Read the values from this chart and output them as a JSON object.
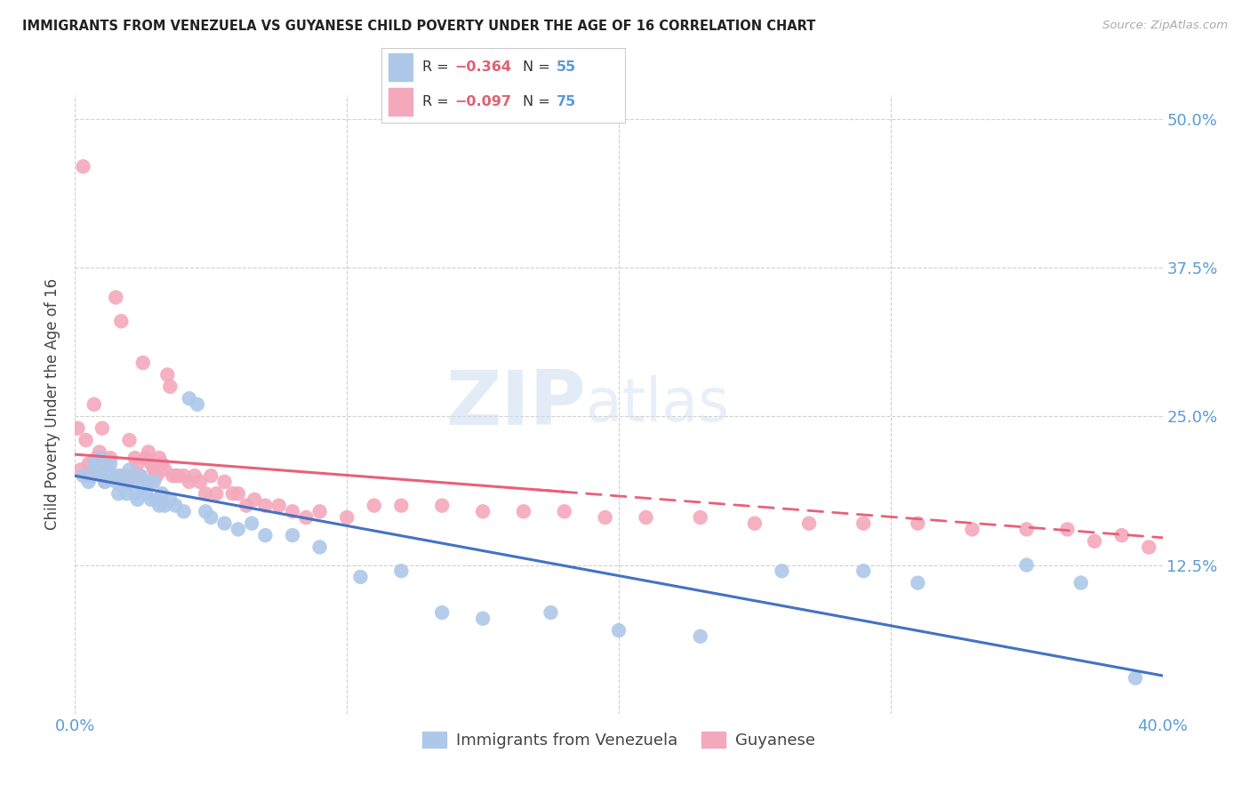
{
  "title": "IMMIGRANTS FROM VENEZUELA VS GUYANESE CHILD POVERTY UNDER THE AGE OF 16 CORRELATION CHART",
  "source": "Source: ZipAtlas.com",
  "ylabel": "Child Poverty Under the Age of 16",
  "xlim": [
    0.0,
    0.4
  ],
  "ylim": [
    0.0,
    0.52
  ],
  "blue_color": "#adc8e8",
  "pink_color": "#f4a8bb",
  "line_blue": "#4472c4",
  "line_pink": "#e8607a",
  "watermark_zip": "ZIP",
  "watermark_atlas": "atlas",
  "blue_scatter_x": [
    0.003,
    0.005,
    0.007,
    0.008,
    0.009,
    0.01,
    0.011,
    0.012,
    0.013,
    0.014,
    0.015,
    0.016,
    0.017,
    0.018,
    0.019,
    0.02,
    0.021,
    0.022,
    0.023,
    0.024,
    0.025,
    0.026,
    0.027,
    0.028,
    0.029,
    0.03,
    0.031,
    0.032,
    0.033,
    0.035,
    0.037,
    0.04,
    0.042,
    0.045,
    0.048,
    0.05,
    0.055,
    0.06,
    0.065,
    0.07,
    0.08,
    0.09,
    0.105,
    0.12,
    0.135,
    0.15,
    0.175,
    0.2,
    0.23,
    0.26,
    0.29,
    0.31,
    0.35,
    0.37,
    0.39
  ],
  "blue_scatter_y": [
    0.2,
    0.195,
    0.21,
    0.205,
    0.215,
    0.2,
    0.195,
    0.205,
    0.21,
    0.2,
    0.195,
    0.185,
    0.2,
    0.19,
    0.185,
    0.205,
    0.195,
    0.185,
    0.18,
    0.2,
    0.19,
    0.185,
    0.195,
    0.18,
    0.195,
    0.18,
    0.175,
    0.185,
    0.175,
    0.18,
    0.175,
    0.17,
    0.265,
    0.26,
    0.17,
    0.165,
    0.16,
    0.155,
    0.16,
    0.15,
    0.15,
    0.14,
    0.115,
    0.12,
    0.085,
    0.08,
    0.085,
    0.07,
    0.065,
    0.12,
    0.12,
    0.11,
    0.125,
    0.11,
    0.03
  ],
  "pink_scatter_x": [
    0.001,
    0.002,
    0.003,
    0.004,
    0.005,
    0.006,
    0.007,
    0.008,
    0.009,
    0.01,
    0.011,
    0.012,
    0.013,
    0.014,
    0.015,
    0.016,
    0.017,
    0.018,
    0.019,
    0.02,
    0.021,
    0.022,
    0.023,
    0.024,
    0.025,
    0.026,
    0.027,
    0.028,
    0.029,
    0.03,
    0.031,
    0.032,
    0.033,
    0.034,
    0.035,
    0.036,
    0.037,
    0.038,
    0.04,
    0.042,
    0.044,
    0.046,
    0.048,
    0.05,
    0.052,
    0.055,
    0.058,
    0.06,
    0.063,
    0.066,
    0.07,
    0.075,
    0.08,
    0.085,
    0.09,
    0.1,
    0.11,
    0.12,
    0.135,
    0.15,
    0.165,
    0.18,
    0.195,
    0.21,
    0.23,
    0.25,
    0.27,
    0.29,
    0.31,
    0.33,
    0.35,
    0.365,
    0.375,
    0.385,
    0.395
  ],
  "pink_scatter_y": [
    0.24,
    0.205,
    0.46,
    0.23,
    0.21,
    0.2,
    0.26,
    0.215,
    0.22,
    0.24,
    0.195,
    0.205,
    0.215,
    0.2,
    0.35,
    0.2,
    0.33,
    0.2,
    0.195,
    0.23,
    0.2,
    0.215,
    0.21,
    0.2,
    0.295,
    0.215,
    0.22,
    0.21,
    0.205,
    0.2,
    0.215,
    0.21,
    0.205,
    0.285,
    0.275,
    0.2,
    0.2,
    0.2,
    0.2,
    0.195,
    0.2,
    0.195,
    0.185,
    0.2,
    0.185,
    0.195,
    0.185,
    0.185,
    0.175,
    0.18,
    0.175,
    0.175,
    0.17,
    0.165,
    0.17,
    0.165,
    0.175,
    0.175,
    0.175,
    0.17,
    0.17,
    0.17,
    0.165,
    0.165,
    0.165,
    0.16,
    0.16,
    0.16,
    0.16,
    0.155,
    0.155,
    0.155,
    0.145,
    0.15,
    0.14
  ],
  "blue_line_x0": 0.0,
  "blue_line_x1": 0.4,
  "blue_line_y0": 0.2,
  "blue_line_y1": 0.032,
  "pink_line_x0": 0.0,
  "pink_line_x1": 0.4,
  "pink_line_y0": 0.218,
  "pink_line_y1": 0.148
}
